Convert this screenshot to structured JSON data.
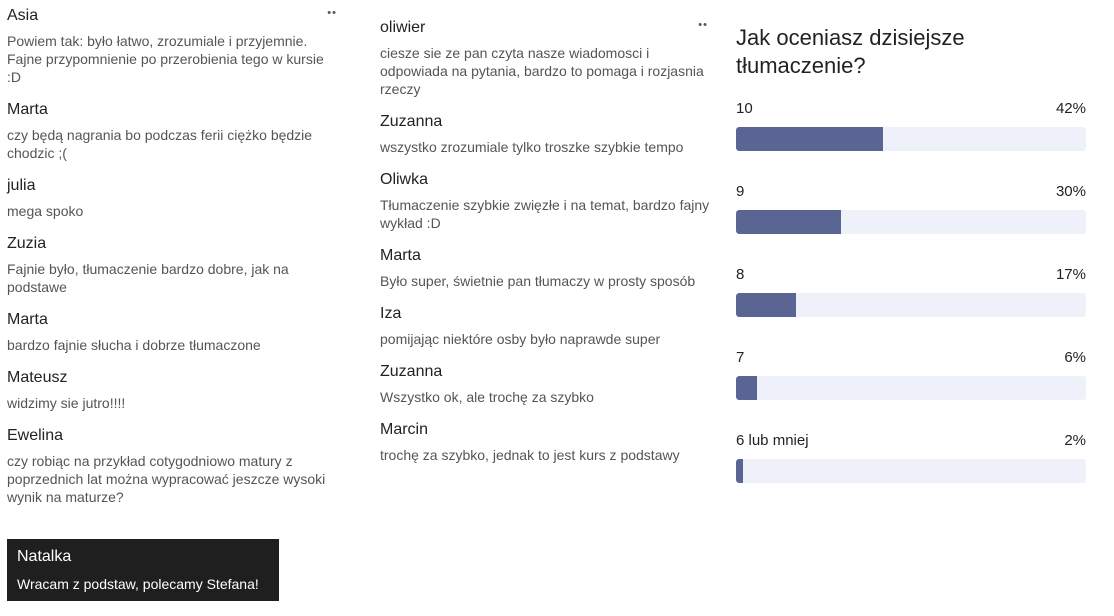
{
  "left_column": {
    "comments": [
      {
        "name": "Asia",
        "text": "Powiem tak: było łatwo, zrozumiale i przyjemnie. Fajne przypomnienie po przerobienia tego w kursie :D"
      },
      {
        "name": "Marta",
        "text": "czy będą nagrania bo podczas ferii ciężko będzie chodzic ;("
      },
      {
        "name": "julia",
        "text": "mega spoko"
      },
      {
        "name": "Zuzia",
        "text": "Fajnie było, tłumaczenie bardzo dobre, jak na podstawe"
      },
      {
        "name": "Marta",
        "text": "bardzo fajnie słucha i dobrze tłumaczone"
      },
      {
        "name": "Mateusz",
        "text": "widzimy sie jutro!!!!"
      },
      {
        "name": "Ewelina",
        "text": "czy robiąc na przykład cotygodniowo matury z poprzednich lat można wypracować jeszcze wysoki wynik na maturze?"
      }
    ],
    "highlighted": {
      "name": "Natalka",
      "text": "Wracam z podstaw, polecamy Stefana!"
    }
  },
  "middle_column": {
    "comments": [
      {
        "name": "oliwier",
        "text": "ciesze sie ze pan czyta nasze wiadomosci i odpowiada na pytania, bardzo to pomaga i rozjasnia rzeczy"
      },
      {
        "name": "Zuzanna",
        "text": "wszystko zrozumiale tylko troszke szybkie tempo"
      },
      {
        "name": "Oliwka",
        "text": "Tłumaczenie szybkie zwięzłe i na temat, bardzo fajny wykład :D"
      },
      {
        "name": "Marta",
        "text": "Było super, świetnie pan tłumaczy w prosty sposób"
      },
      {
        "name": "Iza",
        "text": "pomijając niektóre osby było naprawde super"
      },
      {
        "name": "Zuzanna",
        "text": "Wszystko ok, ale trochę za szybko"
      },
      {
        "name": "Marcin",
        "text": "trochę za szybko, jednak to jest kurs z podstawy"
      }
    ]
  },
  "poll": {
    "title": "Jak oceniasz dzisiejsze tłumaczenie?",
    "bar_color": "#5b6593",
    "track_color": "#eef1f9",
    "options": [
      {
        "label": "10",
        "percent_label": "42%",
        "fraction": 0.42
      },
      {
        "label": "9",
        "percent_label": "30%",
        "fraction": 0.3
      },
      {
        "label": "8",
        "percent_label": "17%",
        "fraction": 0.17
      },
      {
        "label": "7",
        "percent_label": "6%",
        "fraction": 0.06
      },
      {
        "label": "6 lub mniej",
        "percent_label": "2%",
        "fraction": 0.02
      }
    ]
  },
  "icons": {
    "menu": "more-dots-icon"
  }
}
